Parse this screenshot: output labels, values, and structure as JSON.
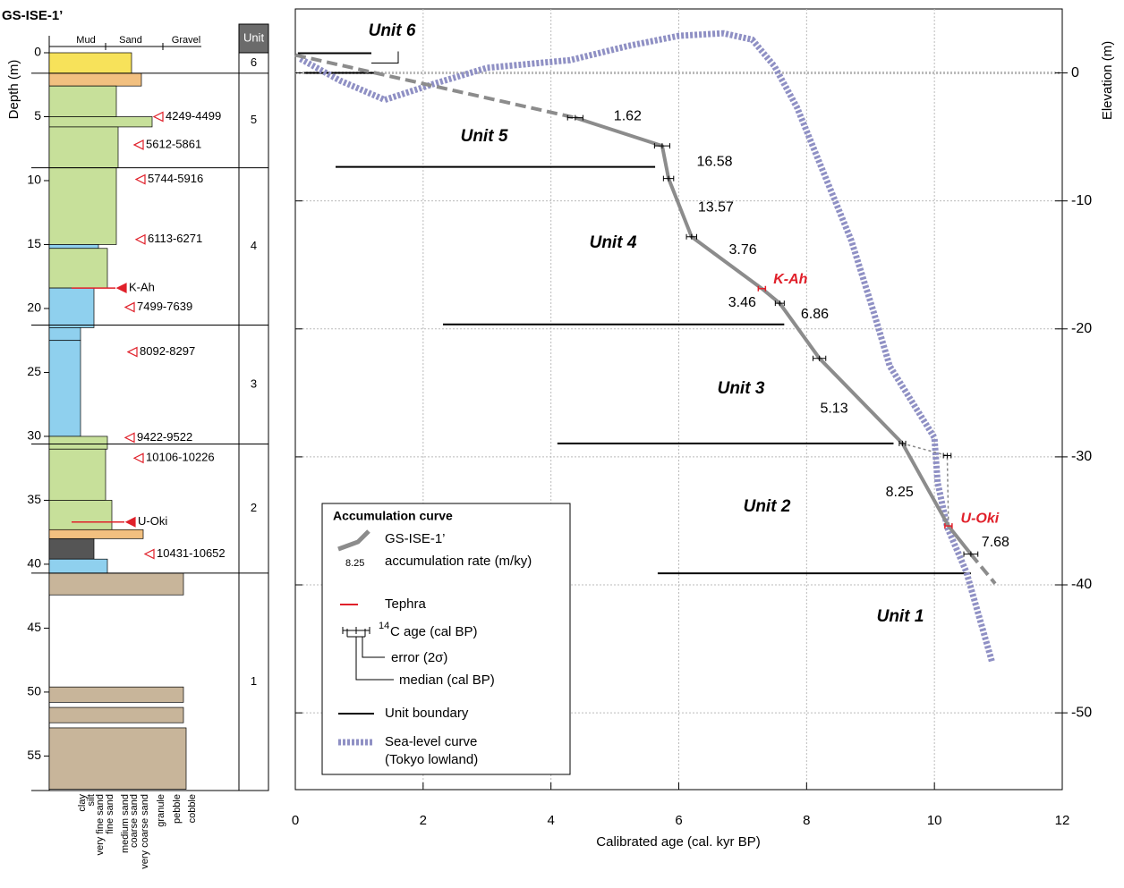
{
  "column": {
    "title": "GS-ISE-1’",
    "depth_label": "Depth (m)",
    "depth_lim": [
      0,
      57.7
    ],
    "depth_ticks": [
      0,
      5,
      10,
      15,
      20,
      25,
      30,
      35,
      40,
      45,
      50,
      55
    ],
    "grain_header": [
      "Mud",
      "Sand",
      "Gravel"
    ],
    "grain_classes": [
      "clay",
      "silt",
      "very fine sand",
      "fine sand",
      "medium sand",
      "coarse sand",
      "very coarse sand",
      "granule",
      "pebble",
      "cobble"
    ],
    "unit_header": "Unit",
    "units": [
      {
        "label": "6",
        "top": 0,
        "bottom": 1.6
      },
      {
        "label": "5",
        "top": 1.6,
        "bottom": 9.0
      },
      {
        "label": "4",
        "top": 9.0,
        "bottom": 21.3
      },
      {
        "label": "3",
        "top": 21.3,
        "bottom": 30.6
      },
      {
        "label": "2",
        "top": 30.6,
        "bottom": 40.7
      },
      {
        "label": "1",
        "top": 40.7,
        "bottom": 57.7
      }
    ],
    "dates": [
      {
        "label": "4249-4499",
        "depth": 5.0
      },
      {
        "label": "5612-5861",
        "depth": 7.2
      },
      {
        "label": "5744-5916",
        "depth": 9.9
      },
      {
        "label": "6113-6271",
        "depth": 14.6
      },
      {
        "label": "K-Ah",
        "depth": 18.4,
        "tephra": true
      },
      {
        "label": "7499-7639",
        "depth": 19.9
      },
      {
        "label": "8092-8297",
        "depth": 23.4
      },
      {
        "label": "9422-9522",
        "depth": 30.1
      },
      {
        "label": "10106-10226",
        "depth": 31.7
      },
      {
        "label": "U-Oki",
        "depth": 36.7,
        "tephra": true
      },
      {
        "label": "10431-10652",
        "depth": 39.2
      }
    ],
    "marker_color": "#e0202a"
  },
  "chart_data": {
    "type": "line",
    "xlabel": "Calibrated age (cal. kyr BP)",
    "ylabel": "Elevation (m)",
    "xlim": [
      0,
      12
    ],
    "xticks": [
      0,
      2,
      4,
      6,
      8,
      10,
      12
    ],
    "ylim": [
      -56,
      5
    ],
    "yticks": [
      -50,
      -40,
      -30,
      -20,
      -10,
      0
    ],
    "grid": true,
    "accumulation": {
      "name": "GS-ISE-1’",
      "color": "#8c8c8c",
      "x": [
        4.38,
        5.74,
        5.84,
        6.2,
        7.3,
        7.58,
        8.2,
        9.5,
        10.22,
        10.57
      ],
      "values": [
        -3.5,
        -5.7,
        -8.25,
        -12.8,
        -16.85,
        -18.0,
        -22.3,
        -28.95,
        -35.4,
        -37.6
      ],
      "rates": [
        1.62,
        16.58,
        13.57,
        3.76,
        3.46,
        6.86,
        5.13,
        8.25,
        7.68
      ],
      "extrapolation": [
        {
          "x": [
            0,
            4.38
          ],
          "values": [
            1.4,
            -3.5
          ]
        },
        {
          "x": [
            10.57,
            10.95
          ],
          "values": [
            -37.6,
            -39.9
          ]
        }
      ]
    },
    "outlier": {
      "x": [
        9.5,
        10.2,
        10.22
      ],
      "values": [
        -28.95,
        -29.9,
        -35.4
      ]
    },
    "radiocarbon": {
      "x": [
        4.38,
        5.74,
        5.84,
        6.2,
        7.58,
        8.2,
        9.5,
        10.57,
        10.2
      ],
      "values": [
        -3.5,
        -5.7,
        -8.25,
        -12.8,
        -18.0,
        -22.3,
        -28.95,
        -37.6,
        -29.9
      ],
      "errors": [
        0.12,
        0.12,
        0.08,
        0.08,
        0.07,
        0.1,
        0.05,
        0.11,
        0.06
      ]
    },
    "tephra": {
      "color": "#e0202a",
      "items": [
        {
          "label": "K-Ah",
          "x": 7.3,
          "value": -16.85
        },
        {
          "label": "U-Oki",
          "x": 10.22,
          "value": -35.4
        }
      ]
    },
    "sea_level": {
      "name": "Sea-level curve",
      "note": "(Tokyo lowland)",
      "color": "#8f90c4",
      "x": [
        0.08,
        0.7,
        1.4,
        2.2,
        3.0,
        4.3,
        5.2,
        6.0,
        6.7,
        7.15,
        7.5,
        7.85,
        8.25,
        8.7,
        9.05,
        9.3,
        9.65,
        10.0,
        10.05,
        10.2,
        10.5,
        10.9
      ],
      "values": [
        1.1,
        -0.6,
        -2.1,
        -0.8,
        0.4,
        1.0,
        2.1,
        2.9,
        3.1,
        2.6,
        0.5,
        -2.7,
        -7.6,
        -13.1,
        -18.7,
        -22.9,
        -25.7,
        -28.5,
        -32.0,
        -35.5,
        -39.0,
        -46.0
      ]
    },
    "unit_boundaries": [
      {
        "x": [
          0.04,
          1.19
        ],
        "value": 1.54
      },
      {
        "x": [
          0.14,
          1.26
        ],
        "value": 0
      },
      {
        "x": [
          0.63,
          5.63
        ],
        "value": -7.34
      },
      {
        "x": [
          2.31,
          7.65
        ],
        "value": -19.65
      },
      {
        "x": [
          4.1,
          9.36
        ],
        "value": -28.95
      },
      {
        "x": [
          5.67,
          10.57
        ],
        "value": -39.1
      }
    ],
    "unit_labels": [
      "Unit 6",
      "Unit 5",
      "Unit 4",
      "Unit 3",
      "Unit 2",
      "Unit 1"
    ],
    "legend": {
      "title": "Accumulation curve",
      "rate_example": 8.25,
      "rate_label": "accumulation rate (m/ky)",
      "tephra": "Tephra",
      "age_isotope": "14",
      "age": "C age (cal BP)",
      "error": "error (2σ)",
      "median": "median (cal BP)",
      "unit_boundary": "Unit boundary"
    }
  }
}
